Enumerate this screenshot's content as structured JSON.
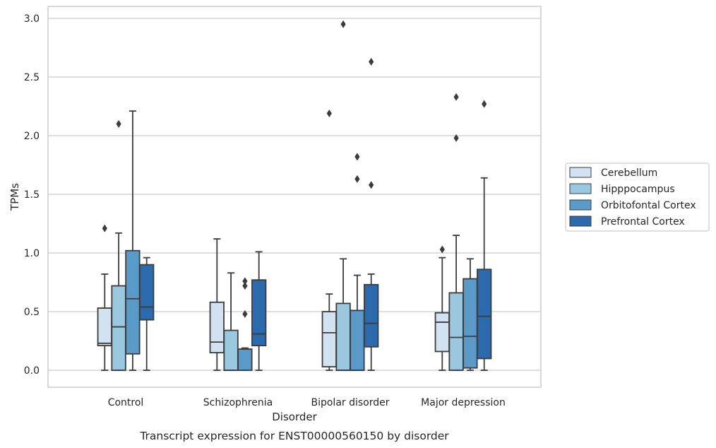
{
  "chart_data": {
    "type": "box",
    "caption": "Transcript expression for ENST00000560150 by disorder",
    "xlabel": "Disorder",
    "ylabel": "TPMs",
    "ylim": [
      -0.14,
      3.1
    ],
    "yticks": [
      0.0,
      0.5,
      1.0,
      1.5,
      2.0,
      2.5,
      3.0
    ],
    "ytick_labels": [
      "0.0",
      "0.5",
      "1.0",
      "1.5",
      "2.0",
      "2.5",
      "3.0"
    ],
    "grid": "horizontal",
    "legend_position": "outside-right",
    "categories": [
      "Control",
      "Schizophrenia",
      "Bipolar disorder",
      "Major depression"
    ],
    "series": [
      {
        "name": "Cerebellum",
        "color": "#d2e2f1",
        "boxes": [
          {
            "whisker_low": 0.0,
            "q1": 0.21,
            "median": 0.23,
            "q3": 0.53,
            "whisker_high": 0.82,
            "outliers": [
              1.21
            ]
          },
          {
            "whisker_low": 0.0,
            "q1": 0.15,
            "median": 0.24,
            "q3": 0.58,
            "whisker_high": 1.12,
            "outliers": []
          },
          {
            "whisker_low": 0.0,
            "q1": 0.03,
            "median": 0.32,
            "q3": 0.5,
            "whisker_high": 0.65,
            "outliers": [
              2.19
            ]
          },
          {
            "whisker_low": 0.0,
            "q1": 0.16,
            "median": 0.41,
            "q3": 0.49,
            "whisker_high": 0.96,
            "outliers": [
              1.03
            ]
          }
        ]
      },
      {
        "name": "Hipppocampus",
        "color": "#9ac8e0",
        "boxes": [
          {
            "whisker_low": 0.0,
            "q1": 0.0,
            "median": 0.37,
            "q3": 0.72,
            "whisker_high": 1.17,
            "outliers": [
              2.1
            ]
          },
          {
            "whisker_low": 0.0,
            "q1": 0.0,
            "median": 0.0,
            "q3": 0.34,
            "whisker_high": 0.83,
            "outliers": []
          },
          {
            "whisker_low": 0.0,
            "q1": 0.0,
            "median": 0.0,
            "q3": 0.57,
            "whisker_high": 0.95,
            "outliers": [
              2.95
            ]
          },
          {
            "whisker_low": 0.0,
            "q1": 0.0,
            "median": 0.28,
            "q3": 0.66,
            "whisker_high": 1.15,
            "outliers": [
              1.98,
              2.33
            ]
          }
        ]
      },
      {
        "name": "Orbitofontal Cortex",
        "color": "#5a9ac9",
        "boxes": [
          {
            "whisker_low": 0.0,
            "q1": 0.14,
            "median": 0.61,
            "q3": 1.02,
            "whisker_high": 2.21,
            "outliers": []
          },
          {
            "whisker_low": 0.0,
            "q1": 0.0,
            "median": 0.18,
            "q3": 0.18,
            "whisker_high": 0.19,
            "outliers": [
              0.48,
              0.72,
              0.76
            ]
          },
          {
            "whisker_low": 0.0,
            "q1": 0.0,
            "median": 0.0,
            "q3": 0.51,
            "whisker_high": 0.81,
            "outliers": [
              1.63,
              1.82
            ]
          },
          {
            "whisker_low": 0.0,
            "q1": 0.02,
            "median": 0.29,
            "q3": 0.78,
            "whisker_high": 0.95,
            "outliers": []
          }
        ]
      },
      {
        "name": "Prefrontal Cortex",
        "color": "#2a6aad",
        "boxes": [
          {
            "whisker_low": 0.0,
            "q1": 0.43,
            "median": 0.54,
            "q3": 0.9,
            "whisker_high": 0.96,
            "outliers": []
          },
          {
            "whisker_low": 0.0,
            "q1": 0.21,
            "median": 0.31,
            "q3": 0.77,
            "whisker_high": 1.01,
            "outliers": []
          },
          {
            "whisker_low": 0.0,
            "q1": 0.2,
            "median": 0.4,
            "q3": 0.73,
            "whisker_high": 0.82,
            "outliers": [
              1.58,
              2.63
            ]
          },
          {
            "whisker_low": 0.0,
            "q1": 0.1,
            "median": 0.46,
            "q3": 0.86,
            "whisker_high": 1.64,
            "outliers": [
              2.27
            ]
          }
        ]
      }
    ]
  }
}
